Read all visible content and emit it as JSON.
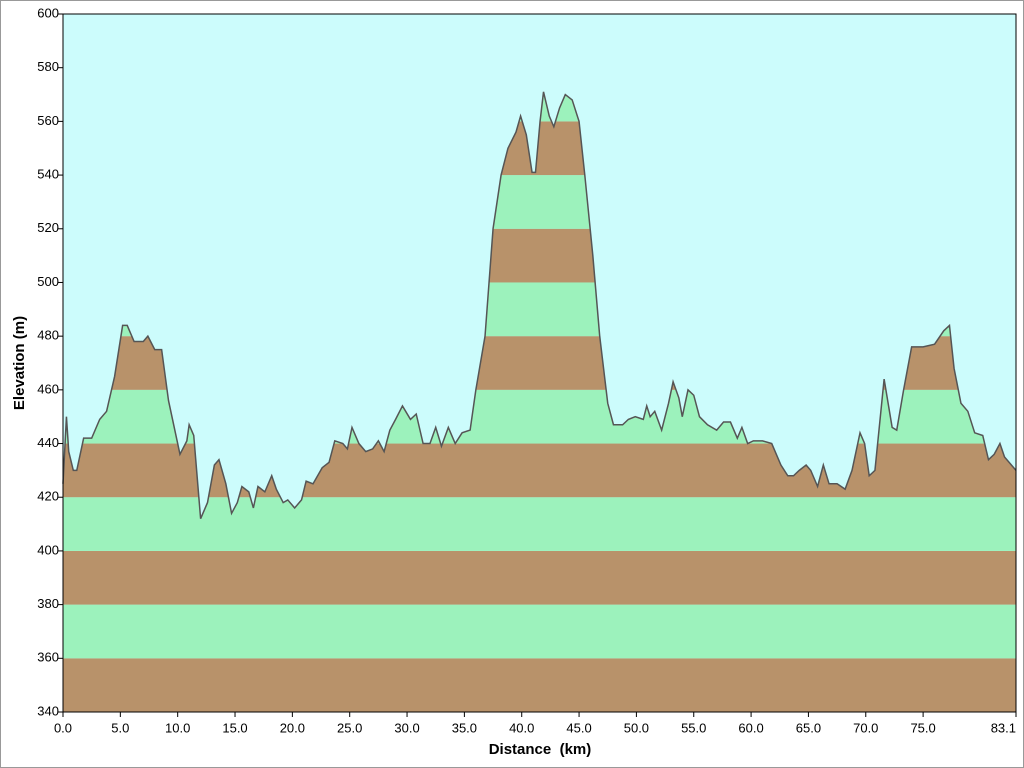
{
  "chart_data": {
    "type": "area",
    "x_label": "Distance  (km)",
    "y_label": "Elevation (m)",
    "x": [
      0,
      0.3,
      0.5,
      0.9,
      1.2,
      1.8,
      2.5,
      3.2,
      3.8,
      4.5,
      5.2,
      5.6,
      6.2,
      7.0,
      7.4,
      8.0,
      8.6,
      9.2,
      10.2,
      10.8,
      11.0,
      11.4,
      12.0,
      12.6,
      13.2,
      13.6,
      14.2,
      14.7,
      15.2,
      15.6,
      16.2,
      16.6,
      17.0,
      17.6,
      18.2,
      18.6,
      19.2,
      19.6,
      20.2,
      20.8,
      21.2,
      21.8,
      22.6,
      23.2,
      23.7,
      24.4,
      24.8,
      25.2,
      25.8,
      26.4,
      27.0,
      27.5,
      28.0,
      28.5,
      29.0,
      29.6,
      30.3,
      30.8,
      31.4,
      32.0,
      32.5,
      33.0,
      33.6,
      34.2,
      34.8,
      35.5,
      36.0,
      36.8,
      37.5,
      38.2,
      38.8,
      39.5,
      39.9,
      40.4,
      40.9,
      41.2,
      41.6,
      41.9,
      42.4,
      42.8,
      43.3,
      43.8,
      44.4,
      45.0,
      45.5,
      46.2,
      46.8,
      47.5,
      48.0,
      48.8,
      49.3,
      49.9,
      50.6,
      50.9,
      51.2,
      51.6,
      52.2,
      52.8,
      53.2,
      53.7,
      54.0,
      54.5,
      55.0,
      55.5,
      56.2,
      57.0,
      57.6,
      58.2,
      58.8,
      59.2,
      59.7,
      60.2,
      61.0,
      61.8,
      62.6,
      63.2,
      63.7,
      64.2,
      64.8,
      65.2,
      65.8,
      66.3,
      66.8,
      67.5,
      68.2,
      68.8,
      69.5,
      69.9,
      70.3,
      70.8,
      71.6,
      72.3,
      72.7,
      73.3,
      74.0,
      75.0,
      76.0,
      76.8,
      77.3,
      77.7,
      78.3,
      78.9,
      79.5,
      80.2,
      80.7,
      81.2,
      81.7,
      82.1,
      83.1
    ],
    "values": [
      425,
      450,
      437,
      430,
      430,
      442,
      442,
      449,
      452,
      465,
      484,
      484,
      478,
      478,
      480,
      475,
      475,
      456,
      436,
      441,
      447,
      443,
      412,
      418,
      432,
      434,
      425,
      414,
      418,
      424,
      422,
      416,
      424,
      422,
      428,
      423,
      418,
      419,
      416,
      419,
      426,
      425,
      431,
      433,
      441,
      440,
      438,
      446,
      440,
      437,
      438,
      441,
      437,
      445,
      449,
      454,
      449,
      451,
      440,
      440,
      446,
      439,
      446,
      440,
      444,
      445,
      460,
      480,
      520,
      540,
      550,
      556,
      562,
      555,
      541,
      541,
      560,
      571,
      562,
      558,
      565,
      570,
      568,
      560,
      540,
      510,
      480,
      455,
      447,
      447,
      449,
      450,
      449,
      454,
      450,
      452,
      445,
      455,
      463,
      457,
      450,
      460,
      458,
      450,
      447,
      445,
      448,
      448,
      442,
      446,
      440,
      441,
      441,
      440,
      432,
      428,
      428,
      430,
      432,
      430,
      424,
      432,
      425,
      425,
      423,
      430,
      444,
      440,
      428,
      430,
      464,
      446,
      445,
      460,
      476,
      476,
      477,
      482,
      484,
      468,
      455,
      452,
      444,
      443,
      434,
      436,
      440,
      435,
      430
    ],
    "color": "#555555",
    "band_colors": [
      "#b8926a",
      "#9cf2bc"
    ],
    "background": "#ccfcfc",
    "xlim": [
      0,
      83.1
    ],
    "xticks": [
      {
        "value": 0,
        "label": "0.0"
      },
      {
        "value": 5,
        "label": "5.0"
      },
      {
        "value": 10,
        "label": "10.0"
      },
      {
        "value": 15,
        "label": "15.0"
      },
      {
        "value": 20,
        "label": "20.0"
      },
      {
        "value": 25,
        "label": "25.0"
      },
      {
        "value": 30,
        "label": "30.0"
      },
      {
        "value": 35,
        "label": "35.0"
      },
      {
        "value": 40,
        "label": "40.0"
      },
      {
        "value": 45,
        "label": "45.0"
      },
      {
        "value": 50,
        "label": "50.0"
      },
      {
        "value": 55,
        "label": "55.0"
      },
      {
        "value": 60,
        "label": "60.0"
      },
      {
        "value": 65,
        "label": "65.0"
      },
      {
        "value": 70,
        "label": "70.0"
      },
      {
        "value": 75,
        "label": "75.0"
      },
      83.1
    ],
    "ylim": [
      340,
      600
    ],
    "yticks": [
      340,
      360,
      380,
      400,
      420,
      440,
      460,
      480,
      500,
      520,
      540,
      560,
      580,
      600
    ]
  }
}
